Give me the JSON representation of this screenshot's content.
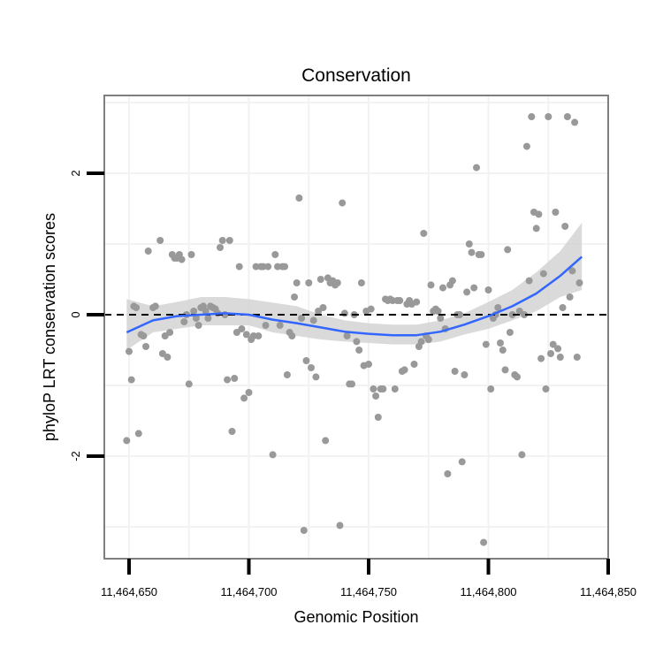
{
  "chart_data": {
    "type": "scatter",
    "title": "Conservation",
    "xlabel": "Genomic Position",
    "ylabel": "phyloP LRT conservation scores",
    "xlim": [
      11464650,
      11464850
    ],
    "ylim": [
      -3.45,
      3.1
    ],
    "x_ticks": [
      11464650,
      11464700,
      11464750,
      11464800,
      11464850
    ],
    "x_tick_labels": [
      "11,464,650",
      "11,464,700",
      "11,464,750",
      "11,464,800",
      "11,464,850"
    ],
    "y_ticks": [
      -2,
      0,
      2
    ],
    "y_tick_labels": [
      "-2",
      "0",
      "2"
    ],
    "reference_line": {
      "y": 0,
      "style": "dashed"
    },
    "colors": {
      "points": "#999999",
      "smooth": "#3366ff",
      "band": "#d3d3d3",
      "panel_border": "#7f7f7f",
      "grid": "#f2f2f2"
    },
    "points": [
      [
        11464649,
        -1.78
      ],
      [
        11464650,
        -0.52
      ],
      [
        11464651,
        -0.92
      ],
      [
        11464652,
        0.12
      ],
      [
        11464653,
        0.1
      ],
      [
        11464654,
        -1.68
      ],
      [
        11464655,
        -0.28
      ],
      [
        11464656,
        -0.3
      ],
      [
        11464657,
        -0.45
      ],
      [
        11464658,
        0.9
      ],
      [
        11464660,
        0.1
      ],
      [
        11464661,
        0.12
      ],
      [
        11464663,
        1.05
      ],
      [
        11464664,
        -0.55
      ],
      [
        11464665,
        -0.3
      ],
      [
        11464666,
        -0.6
      ],
      [
        11464667,
        -0.25
      ],
      [
        11464668,
        0.85
      ],
      [
        11464669,
        0.8
      ],
      [
        11464670,
        0.8
      ],
      [
        11464671,
        0.85
      ],
      [
        11464672,
        0.78
      ],
      [
        11464673,
        -0.1
      ],
      [
        11464674,
        0.0
      ],
      [
        11464675,
        -0.98
      ],
      [
        11464676,
        0.85
      ],
      [
        11464677,
        0.05
      ],
      [
        11464678,
        -0.05
      ],
      [
        11464679,
        -0.15
      ],
      [
        11464680,
        0.1
      ],
      [
        11464681,
        0.12
      ],
      [
        11464682,
        0.05
      ],
      [
        11464683,
        -0.05
      ],
      [
        11464684,
        0.12
      ],
      [
        11464685,
        0.1
      ],
      [
        11464686,
        0.08
      ],
      [
        11464687,
        0.02
      ],
      [
        11464688,
        0.95
      ],
      [
        11464689,
        1.05
      ],
      [
        11464690,
        0.0
      ],
      [
        11464691,
        -0.92
      ],
      [
        11464692,
        1.05
      ],
      [
        11464693,
        -1.65
      ],
      [
        11464694,
        -0.9
      ],
      [
        11464695,
        -0.25
      ],
      [
        11464696,
        0.68
      ],
      [
        11464697,
        -0.2
      ],
      [
        11464698,
        -1.18
      ],
      [
        11464699,
        -0.28
      ],
      [
        11464700,
        -1.1
      ],
      [
        11464701,
        -0.35
      ],
      [
        11464702,
        -0.3
      ],
      [
        11464703,
        0.68
      ],
      [
        11464704,
        -0.3
      ],
      [
        11464705,
        0.68
      ],
      [
        11464706,
        0.68
      ],
      [
        11464707,
        -0.15
      ],
      [
        11464708,
        0.68
      ],
      [
        11464710,
        -1.98
      ],
      [
        11464711,
        0.85
      ],
      [
        11464712,
        0.68
      ],
      [
        11464713,
        -0.15
      ],
      [
        11464714,
        0.68
      ],
      [
        11464715,
        0.68
      ],
      [
        11464716,
        -0.85
      ],
      [
        11464717,
        -0.25
      ],
      [
        11464718,
        -0.3
      ],
      [
        11464719,
        0.25
      ],
      [
        11464720,
        0.45
      ],
      [
        11464721,
        1.65
      ],
      [
        11464722,
        -0.05
      ],
      [
        11464723,
        -3.05
      ],
      [
        11464724,
        -0.65
      ],
      [
        11464725,
        0.45
      ],
      [
        11464726,
        -0.75
      ],
      [
        11464727,
        -0.08
      ],
      [
        11464728,
        -0.88
      ],
      [
        11464729,
        0.05
      ],
      [
        11464730,
        0.5
      ],
      [
        11464731,
        0.1
      ],
      [
        11464732,
        -1.78
      ],
      [
        11464733,
        0.52
      ],
      [
        11464734,
        0.45
      ],
      [
        11464735,
        0.48
      ],
      [
        11464736,
        0.42
      ],
      [
        11464737,
        0.45
      ],
      [
        11464738,
        -2.98
      ],
      [
        11464739,
        1.58
      ],
      [
        11464740,
        0.02
      ],
      [
        11464741,
        -0.3
      ],
      [
        11464742,
        -0.98
      ],
      [
        11464743,
        -0.98
      ],
      [
        11464744,
        0.0
      ],
      [
        11464745,
        -0.38
      ],
      [
        11464746,
        -0.5
      ],
      [
        11464747,
        0.45
      ],
      [
        11464748,
        -0.72
      ],
      [
        11464749,
        0.05
      ],
      [
        11464750,
        -0.7
      ],
      [
        11464751,
        0.08
      ],
      [
        11464752,
        -1.05
      ],
      [
        11464753,
        -1.15
      ],
      [
        11464754,
        -1.45
      ],
      [
        11464755,
        -1.05
      ],
      [
        11464756,
        -1.05
      ],
      [
        11464757,
        0.22
      ],
      [
        11464758,
        0.2
      ],
      [
        11464759,
        0.22
      ],
      [
        11464760,
        0.2
      ],
      [
        11464761,
        -1.05
      ],
      [
        11464762,
        0.2
      ],
      [
        11464763,
        0.2
      ],
      [
        11464764,
        -0.8
      ],
      [
        11464765,
        -0.78
      ],
      [
        11464766,
        0.15
      ],
      [
        11464767,
        0.2
      ],
      [
        11464768,
        0.15
      ],
      [
        11464769,
        -0.7
      ],
      [
        11464770,
        0.18
      ],
      [
        11464771,
        -0.45
      ],
      [
        11464772,
        -0.38
      ],
      [
        11464773,
        1.15
      ],
      [
        11464774,
        -0.3
      ],
      [
        11464775,
        -0.35
      ],
      [
        11464776,
        0.42
      ],
      [
        11464777,
        0.05
      ],
      [
        11464778,
        0.08
      ],
      [
        11464779,
        0.05
      ],
      [
        11464780,
        -0.05
      ],
      [
        11464781,
        0.38
      ],
      [
        11464782,
        -0.2
      ],
      [
        11464783,
        -2.25
      ],
      [
        11464784,
        0.42
      ],
      [
        11464785,
        0.48
      ],
      [
        11464786,
        -0.8
      ],
      [
        11464787,
        0.0
      ],
      [
        11464788,
        0.0
      ],
      [
        11464789,
        -2.08
      ],
      [
        11464790,
        -0.85
      ],
      [
        11464791,
        0.32
      ],
      [
        11464792,
        1.0
      ],
      [
        11464793,
        0.88
      ],
      [
        11464794,
        0.38
      ],
      [
        11464795,
        2.08
      ],
      [
        11464796,
        0.85
      ],
      [
        11464797,
        0.85
      ],
      [
        11464798,
        -3.22
      ],
      [
        11464799,
        -0.42
      ],
      [
        11464800,
        0.35
      ],
      [
        11464801,
        -1.05
      ],
      [
        11464802,
        -0.05
      ],
      [
        11464803,
        0.0
      ],
      [
        11464804,
        0.1
      ],
      [
        11464805,
        -0.4
      ],
      [
        11464806,
        -0.5
      ],
      [
        11464807,
        -0.78
      ],
      [
        11464808,
        0.92
      ],
      [
        11464809,
        -0.25
      ],
      [
        11464810,
        0.0
      ],
      [
        11464811,
        -0.85
      ],
      [
        11464812,
        -0.88
      ],
      [
        11464813,
        0.05
      ],
      [
        11464814,
        -1.98
      ],
      [
        11464815,
        0.0
      ],
      [
        11464816,
        2.38
      ],
      [
        11464817,
        0.48
      ],
      [
        11464818,
        2.8
      ],
      [
        11464819,
        1.45
      ],
      [
        11464820,
        1.22
      ],
      [
        11464821,
        1.42
      ],
      [
        11464822,
        -0.62
      ],
      [
        11464823,
        0.58
      ],
      [
        11464824,
        -1.05
      ],
      [
        11464825,
        2.8
      ],
      [
        11464826,
        -0.55
      ],
      [
        11464827,
        -0.42
      ],
      [
        11464828,
        1.45
      ],
      [
        11464829,
        -0.48
      ],
      [
        11464830,
        -0.6
      ],
      [
        11464831,
        0.1
      ],
      [
        11464832,
        1.25
      ],
      [
        11464833,
        2.8
      ],
      [
        11464834,
        0.25
      ],
      [
        11464835,
        0.62
      ],
      [
        11464836,
        2.72
      ],
      [
        11464837,
        -0.6
      ],
      [
        11464838,
        0.45
      ]
    ],
    "smooth_fit": {
      "x": [
        11464649,
        11464660,
        11464670,
        11464680,
        11464690,
        11464700,
        11464710,
        11464720,
        11464730,
        11464740,
        11464750,
        11464760,
        11464770,
        11464780,
        11464790,
        11464800,
        11464810,
        11464820,
        11464830,
        11464839
      ],
      "y": [
        -0.25,
        -0.08,
        -0.02,
        0.0,
        0.02,
        0.0,
        -0.07,
        -0.12,
        -0.18,
        -0.24,
        -0.27,
        -0.29,
        -0.29,
        -0.24,
        -0.14,
        -0.02,
        0.12,
        0.3,
        0.55,
        0.82
      ],
      "lower": [
        -0.5,
        -0.25,
        -0.2,
        -0.15,
        -0.15,
        -0.15,
        -0.25,
        -0.3,
        -0.35,
        -0.38,
        -0.4,
        -0.42,
        -0.42,
        -0.38,
        -0.28,
        -0.2,
        -0.08,
        0.05,
        0.25,
        0.35
      ],
      "upper": [
        0.22,
        0.12,
        0.18,
        0.25,
        0.25,
        0.22,
        0.17,
        0.12,
        0.0,
        -0.08,
        -0.12,
        -0.14,
        -0.14,
        -0.08,
        0.02,
        0.18,
        0.35,
        0.6,
        0.9,
        1.3
      ]
    }
  }
}
